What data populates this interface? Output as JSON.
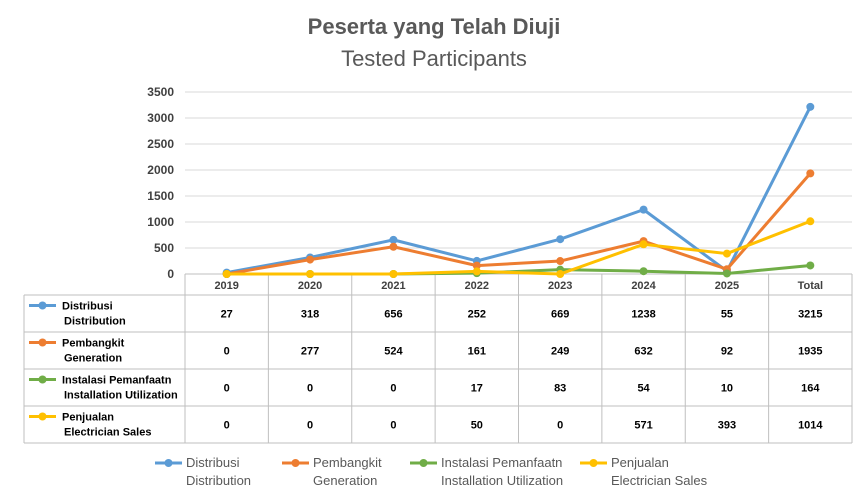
{
  "title": "Peserta yang Telah Diuji",
  "subtitle": "Tested Participants",
  "chart_data": {
    "type": "line",
    "title": "Peserta yang Telah Diuji",
    "subtitle": "Tested Participants",
    "categories": [
      "2019",
      "2020",
      "2021",
      "2022",
      "2023",
      "2024",
      "2025",
      "Total"
    ],
    "ylim": [
      0,
      3500
    ],
    "yticks": [
      0,
      500,
      1000,
      1500,
      2000,
      2500,
      3000,
      3500
    ],
    "grid": true,
    "legend_position": "bottom",
    "data_table": true,
    "series": [
      {
        "name_line1": "Distribusi",
        "name_line2": "Distribution",
        "color": "#5B9BD5",
        "values": [
          27,
          318,
          656,
          252,
          669,
          1238,
          55,
          3215
        ]
      },
      {
        "name_line1": "Pembangkit",
        "name_line2": "Generation",
        "color": "#ED7D31",
        "values": [
          0,
          277,
          524,
          161,
          249,
          632,
          92,
          1935
        ]
      },
      {
        "name_line1": "Instalasi Pemanfaatn",
        "name_line2": "Installation Utilization",
        "color": "#70AD47",
        "values": [
          0,
          0,
          0,
          17,
          83,
          54,
          10,
          164
        ]
      },
      {
        "name_line1": "Penjualan",
        "name_line2": "Electrician Sales",
        "color": "#FFC000",
        "values": [
          0,
          0,
          0,
          50,
          0,
          571,
          393,
          1014
        ]
      }
    ]
  }
}
